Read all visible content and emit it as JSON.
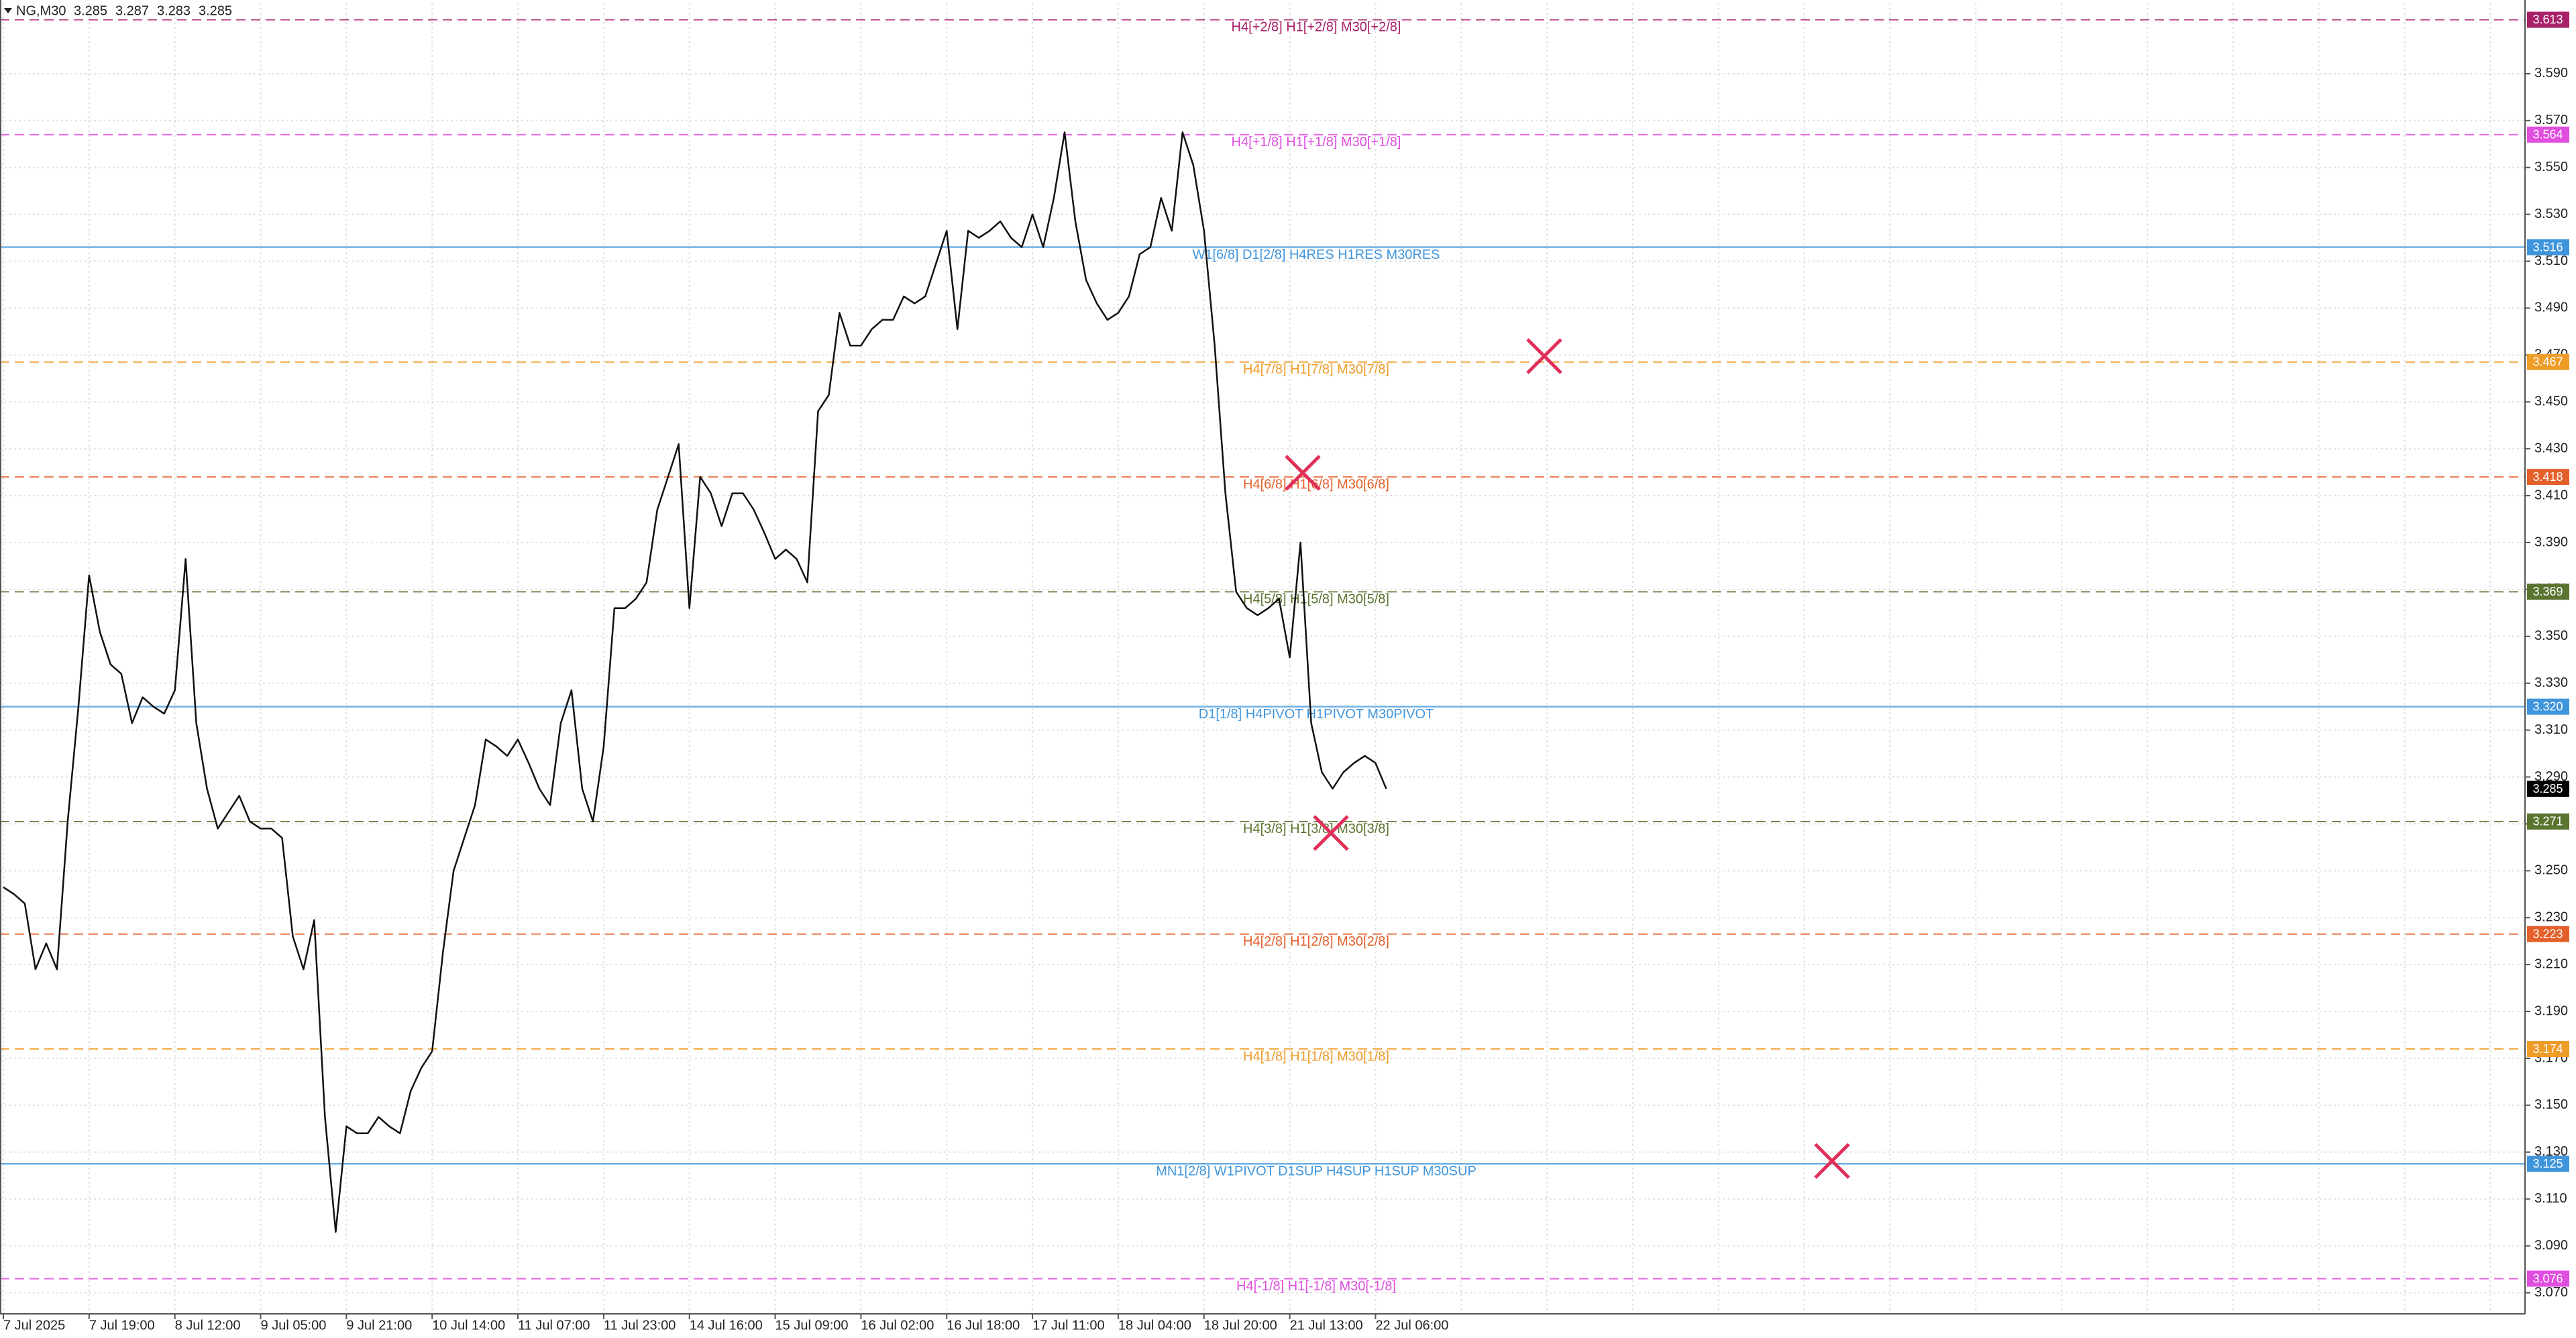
{
  "chart_data": {
    "type": "line",
    "symbol": "NG,M30",
    "ohlc": [
      3.285,
      3.287,
      3.283,
      3.285
    ],
    "color": "#111111",
    "categories": [
      "7 Jul 2025",
      null,
      null,
      null,
      null,
      null,
      null,
      null,
      "7 Jul 19:00",
      null,
      null,
      null,
      null,
      null,
      null,
      null,
      "8 Jul 12:00",
      null,
      null,
      null,
      null,
      null,
      null,
      null,
      "9 Jul 05:00",
      null,
      null,
      null,
      null,
      null,
      null,
      null,
      "9 Jul 21:00",
      null,
      null,
      null,
      null,
      null,
      null,
      null,
      "10 Jul 14:00",
      null,
      null,
      null,
      null,
      null,
      null,
      null,
      "11 Jul 07:00",
      null,
      null,
      null,
      null,
      null,
      null,
      null,
      "11 Jul 23:00",
      null,
      null,
      null,
      null,
      null,
      null,
      null,
      "14 Jul 16:00",
      null,
      null,
      null,
      null,
      null,
      null,
      null,
      "15 Jul 09:00",
      null,
      null,
      null,
      null,
      null,
      null,
      null,
      "16 Jul 02:00",
      null,
      null,
      null,
      null,
      null,
      null,
      null,
      "16 Jul 18:00",
      null,
      null,
      null,
      null,
      null,
      null,
      null,
      "17 Jul 11:00",
      null,
      null,
      null,
      null,
      null,
      null,
      null,
      "18 Jul 04:00",
      null,
      null,
      null,
      null,
      null,
      null,
      null,
      "18 Jul 20:00",
      null,
      null,
      null,
      null,
      null,
      null,
      null,
      "21 Jul 13:00",
      null,
      null,
      null,
      null,
      null,
      null,
      null,
      "22 Jul 06:00",
      null
    ],
    "values": [
      3.243,
      3.24,
      3.236,
      3.208,
      3.219,
      3.208,
      3.271,
      3.32,
      3.376,
      3.352,
      3.338,
      3.334,
      3.313,
      3.324,
      3.32,
      3.317,
      3.327,
      3.383,
      3.313,
      3.285,
      3.268,
      3.275,
      3.282,
      3.271,
      3.268,
      3.268,
      3.264,
      3.222,
      3.208,
      3.229,
      3.145,
      3.096,
      3.141,
      3.138,
      3.138,
      3.145,
      3.141,
      3.138,
      3.156,
      3.166,
      3.173,
      3.215,
      3.25,
      3.264,
      3.278,
      3.306,
      3.303,
      3.299,
      3.306,
      3.296,
      3.285,
      3.278,
      3.313,
      3.327,
      3.285,
      3.271,
      3.303,
      3.362,
      3.362,
      3.366,
      3.373,
      3.404,
      3.418,
      3.432,
      3.362,
      3.418,
      3.411,
      3.397,
      3.411,
      3.411,
      3.404,
      3.394,
      3.383,
      3.387,
      3.383,
      3.373,
      3.446,
      3.453,
      3.488,
      3.474,
      3.474,
      3.481,
      3.485,
      3.485,
      3.495,
      3.492,
      3.495,
      3.509,
      3.523,
      3.481,
      3.523,
      3.52,
      3.523,
      3.527,
      3.52,
      3.516,
      3.53,
      3.516,
      3.537,
      3.565,
      3.527,
      3.502,
      3.492,
      3.485,
      3.488,
      3.495,
      3.513,
      3.516,
      3.537,
      3.523,
      3.565,
      3.551,
      3.523,
      3.474,
      3.411,
      3.369,
      3.362,
      3.359,
      3.362,
      3.366,
      3.341,
      3.39,
      3.313,
      3.292,
      3.285,
      3.292,
      3.296,
      3.299,
      3.296,
      3.285
    ],
    "current_price": 3.285,
    "ylim": [
      3.061,
      3.62
    ],
    "yticks": [
      {
        "value": 3.07,
        "label": "3.070"
      },
      {
        "value": 3.09,
        "label": "3.090"
      },
      {
        "value": 3.11,
        "label": "3.110"
      },
      {
        "value": 3.13,
        "label": "3.130"
      },
      {
        "value": 3.15,
        "label": "3.150"
      },
      {
        "value": 3.17,
        "label": "3.170"
      },
      {
        "value": 3.19,
        "label": "3.190"
      },
      {
        "value": 3.21,
        "label": "3.210"
      },
      {
        "value": 3.23,
        "label": "3.230"
      },
      {
        "value": 3.25,
        "label": "3.250"
      },
      {
        "value": 3.27,
        "label": "3.270"
      },
      {
        "value": 3.29,
        "label": "3.290"
      },
      {
        "value": 3.31,
        "label": "3.310"
      },
      {
        "value": 3.33,
        "label": "3.330"
      },
      {
        "value": 3.35,
        "label": "3.350"
      },
      {
        "value": 3.37,
        "label": "3.370"
      },
      {
        "value": 3.39,
        "label": "3.390"
      },
      {
        "value": 3.41,
        "label": "3.410"
      },
      {
        "value": 3.43,
        "label": "3.430"
      },
      {
        "value": 3.45,
        "label": "3.450"
      },
      {
        "value": 3.47,
        "label": "3.470"
      },
      {
        "value": 3.49,
        "label": "3.490"
      },
      {
        "value": 3.51,
        "label": "3.510"
      },
      {
        "value": 3.53,
        "label": "3.530"
      },
      {
        "value": 3.55,
        "label": "3.550"
      },
      {
        "value": 3.57,
        "label": "3.570"
      },
      {
        "value": 3.59,
        "label": "3.590"
      }
    ],
    "grid": true,
    "levels": [
      {
        "label": "H4[+2/8] H1[+2/8] M30[+2/8]",
        "value": 3.613,
        "value_label": "3.613",
        "color": "#a8206a",
        "dashed": true
      },
      {
        "label": "H4[+1/8] H1[+1/8] M30[+1/8]",
        "value": 3.564,
        "value_label": "3.564",
        "color": "#e04ee0",
        "dashed": true
      },
      {
        "label": "W1[6/8] D1[2/8] H4RES H1RES M30RES",
        "value": 3.516,
        "value_label": "3.516",
        "color": "#3f95dc",
        "dashed": false
      },
      {
        "label": "H4[7/8] H1[7/8] M30[7/8]",
        "value": 3.467,
        "value_label": "3.467",
        "color": "#ee9c28",
        "dashed": true
      },
      {
        "label": "H4[6/8] H1[6/8] M30[6/8]",
        "value": 3.418,
        "value_label": "3.418",
        "color": "#e4602a",
        "dashed": true
      },
      {
        "label": "H4[5/8] H1[5/8] M30[5/8]",
        "value": 3.369,
        "value_label": "3.369",
        "color": "#5a7430",
        "dashed": true
      },
      {
        "label": "D1[1/8] H4PIVOT H1PIVOT M30PIVOT",
        "value": 3.32,
        "value_label": "3.320",
        "color": "#3f95dc",
        "dashed": false
      },
      {
        "label": "H4[3/8] H1[3/8] M30[3/8]",
        "value": 3.271,
        "value_label": "3.271",
        "color": "#5a7430",
        "dashed": true
      },
      {
        "label": "H4[2/8] H1[2/8] M30[2/8]",
        "value": 3.223,
        "value_label": "3.223",
        "color": "#e4602a",
        "dashed": true
      },
      {
        "label": "H4[1/8] H1[1/8] M30[1/8]",
        "value": 3.174,
        "value_label": "3.174",
        "color": "#ee9c28",
        "dashed": true
      },
      {
        "label": "MN1[2/8] W1PIVOT D1SUP H4SUP H1SUP M30SUP",
        "value": 3.125,
        "value_label": "3.125",
        "color": "#3f95dc",
        "dashed": false
      },
      {
        "label": "H4[-1/8] H1[-1/8] M30[-1/8]",
        "value": 3.076,
        "value_label": "3.076",
        "color": "#e04ee0",
        "dashed": true
      }
    ]
  }
}
